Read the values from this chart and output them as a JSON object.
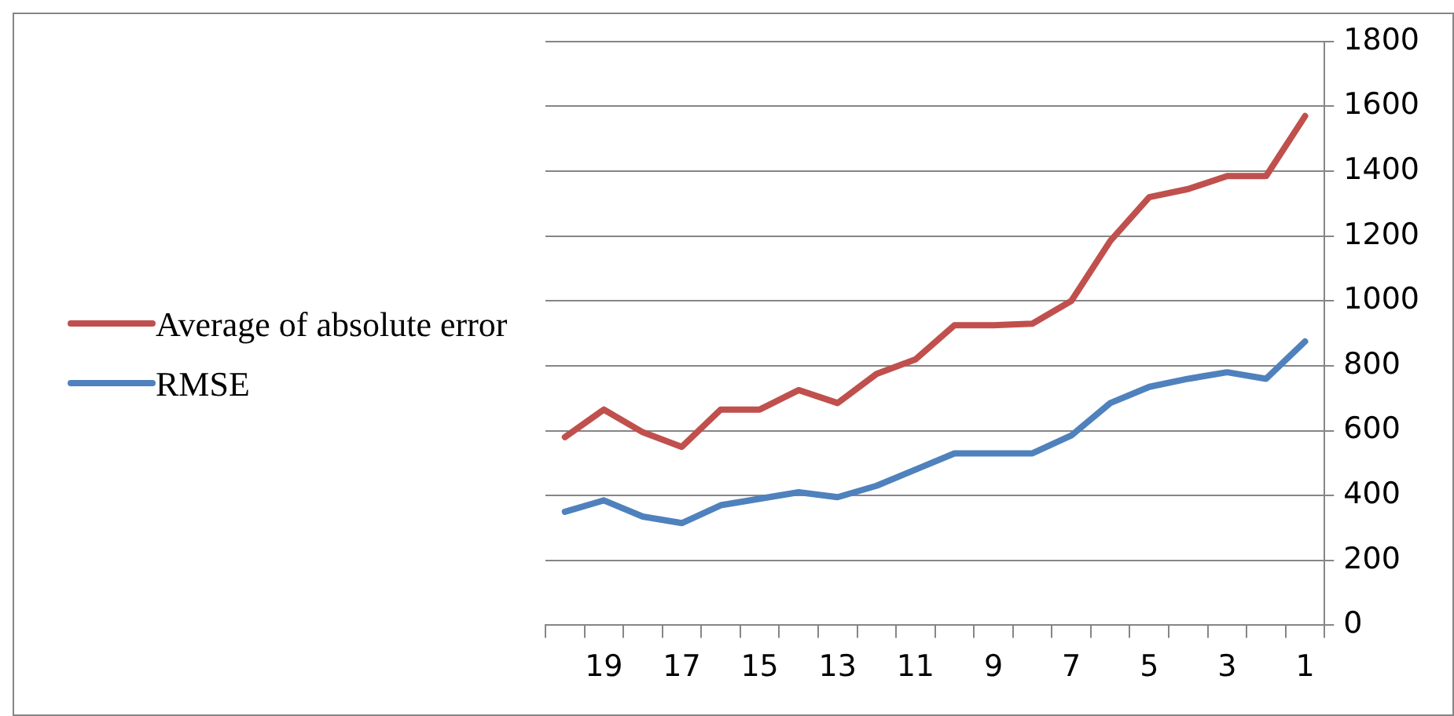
{
  "chart_data": {
    "type": "line",
    "categories": [
      null,
      "19",
      null,
      "17",
      null,
      "15",
      null,
      "13",
      null,
      "11",
      null,
      "9",
      null,
      "7",
      null,
      "5",
      null,
      "3",
      null,
      "1"
    ],
    "series": [
      {
        "name": "Average of absolute error",
        "color": "#c0504d",
        "values": [
          580,
          665,
          595,
          550,
          665,
          665,
          725,
          685,
          775,
          820,
          925,
          925,
          930,
          1000,
          1185,
          1320,
          1345,
          1385,
          1385,
          1570
        ]
      },
      {
        "name": "RMSE",
        "color": "#4f81bd",
        "values": [
          350,
          385,
          335,
          315,
          370,
          390,
          410,
          395,
          430,
          480,
          530,
          530,
          530,
          585,
          685,
          735,
          760,
          780,
          760,
          875
        ]
      }
    ],
    "ylim": [
      0,
      1800
    ],
    "yticks": [
      0,
      200,
      400,
      600,
      800,
      1000,
      1200,
      1400,
      1600,
      1800
    ],
    "grid": "y",
    "legend": "left",
    "marker": "none",
    "line_style": "solid"
  }
}
